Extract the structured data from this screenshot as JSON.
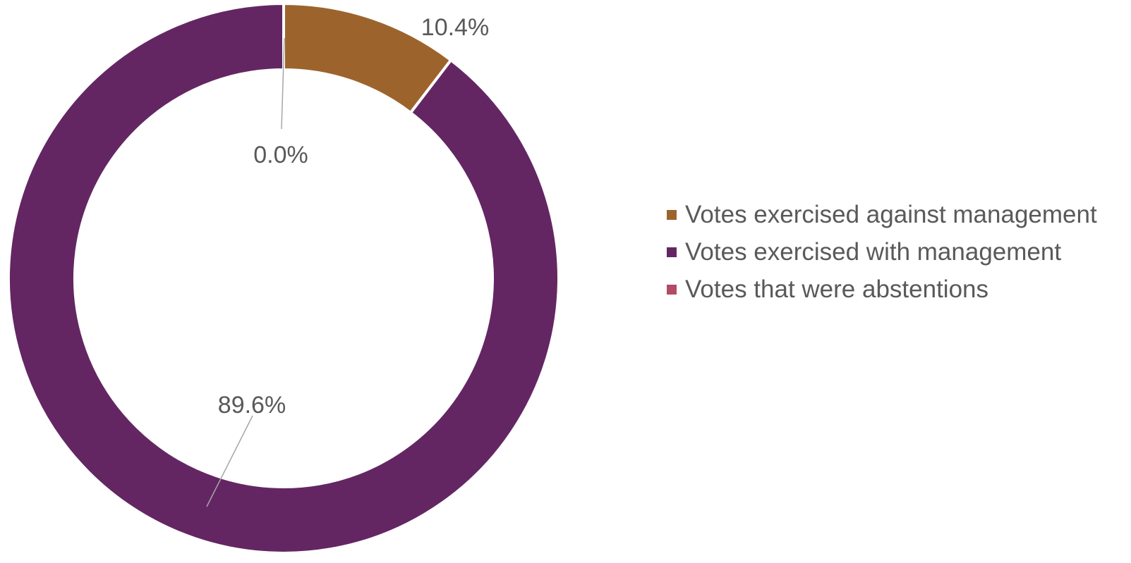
{
  "chart_data": {
    "type": "pie",
    "variant": "donut",
    "title": "",
    "slices": [
      {
        "label": "Votes exercised against management",
        "value": 10.4,
        "display": "10.4%",
        "color": "#9C642C"
      },
      {
        "label": "Votes exercised with management",
        "value": 89.6,
        "display": "89.6%",
        "color": "#632663"
      },
      {
        "label": "Votes that were abstentions",
        "value": 0.0,
        "display": "0.0%",
        "color": "#B34A66"
      }
    ],
    "legend_position": "right",
    "start_angle": "top",
    "direction": "clockwise"
  }
}
